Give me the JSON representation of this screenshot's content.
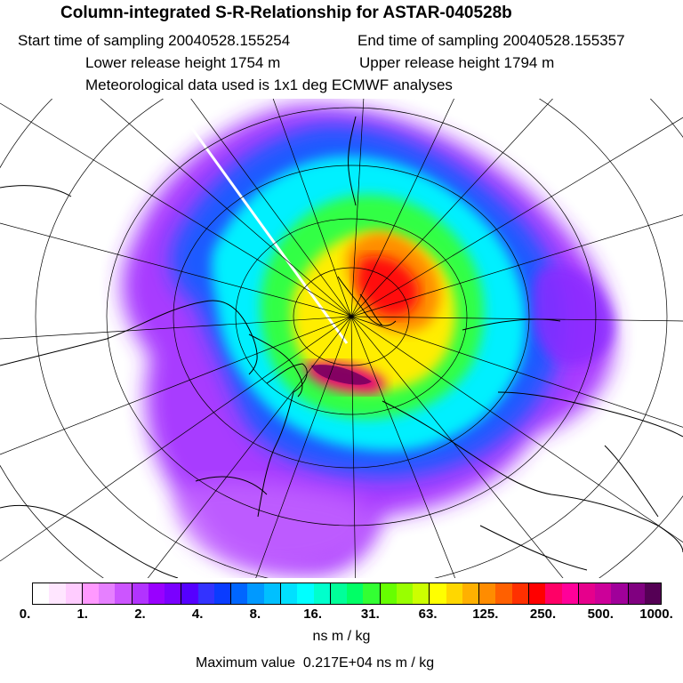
{
  "header": {
    "title": "Column-integrated S-R-Relationship for ASTAR-040528b",
    "start": "Start time of sampling 20040528.155254",
    "end": "End time of sampling 20040528.155357",
    "lower": "Lower release height 1754 m",
    "upper": "Upper release height 1794 m",
    "met": "Meteorological data used is 1x1 deg ECMWF analyses"
  },
  "colorbar": {
    "colors": [
      "#ffffff",
      "#ffe6ff",
      "#ffccff",
      "#ff99ff",
      "#e680ff",
      "#cc55ff",
      "#b233ff",
      "#9900ff",
      "#7a00ff",
      "#5500ff",
      "#3333ff",
      "#0a3cff",
      "#0066ff",
      "#0099ff",
      "#00c0ff",
      "#00e0ff",
      "#00ffff",
      "#00ffcc",
      "#00ff99",
      "#00ff66",
      "#33ff33",
      "#66ff00",
      "#99ff00",
      "#ccff00",
      "#ffff00",
      "#ffd700",
      "#ffb000",
      "#ff8c00",
      "#ff6000",
      "#ff3000",
      "#ff0000",
      "#ff0066",
      "#ff0099",
      "#e6008c",
      "#cc0099",
      "#a0009a",
      "#800080",
      "#550055"
    ],
    "ticks": [
      "0.",
      "1.",
      "2.",
      "4.",
      "8.",
      "16.",
      "31.",
      "63.",
      "125.",
      "250.",
      "500.",
      "1000."
    ],
    "units": "ns m / kg"
  },
  "footer": {
    "max_label": "Maximum value",
    "max_value": "0.217E+04 ns m / kg"
  }
}
